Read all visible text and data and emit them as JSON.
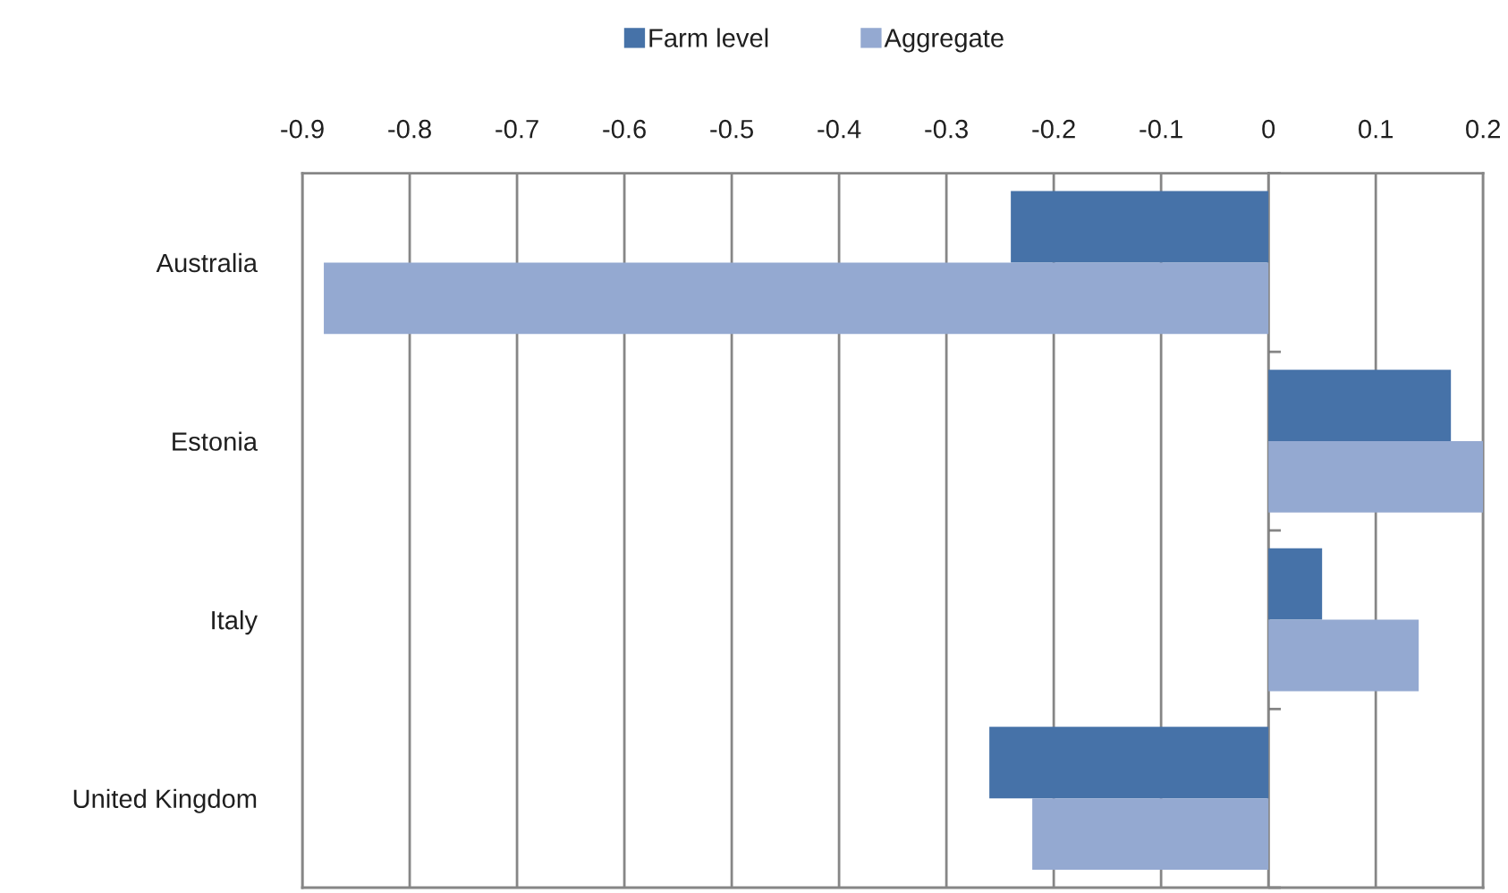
{
  "chart_data": {
    "type": "bar",
    "orientation": "horizontal",
    "categories": [
      "Australia",
      "Estonia",
      "Italy",
      "United Kingdom"
    ],
    "series": [
      {
        "name": "Farm level",
        "color": "#4672a8",
        "values": [
          -0.24,
          0.17,
          0.05,
          -0.26
        ]
      },
      {
        "name": "Aggregate",
        "color": "#94a9d1",
        "values": [
          -0.88,
          0.2,
          0.14,
          -0.22
        ]
      }
    ],
    "xlim": [
      -0.9,
      0.2
    ],
    "xticks": [
      -0.9,
      -0.8,
      -0.7,
      -0.6,
      -0.5,
      -0.4,
      -0.3,
      -0.2,
      -0.1,
      0,
      0.1,
      0.2
    ],
    "grid": "x",
    "legend": "top"
  }
}
